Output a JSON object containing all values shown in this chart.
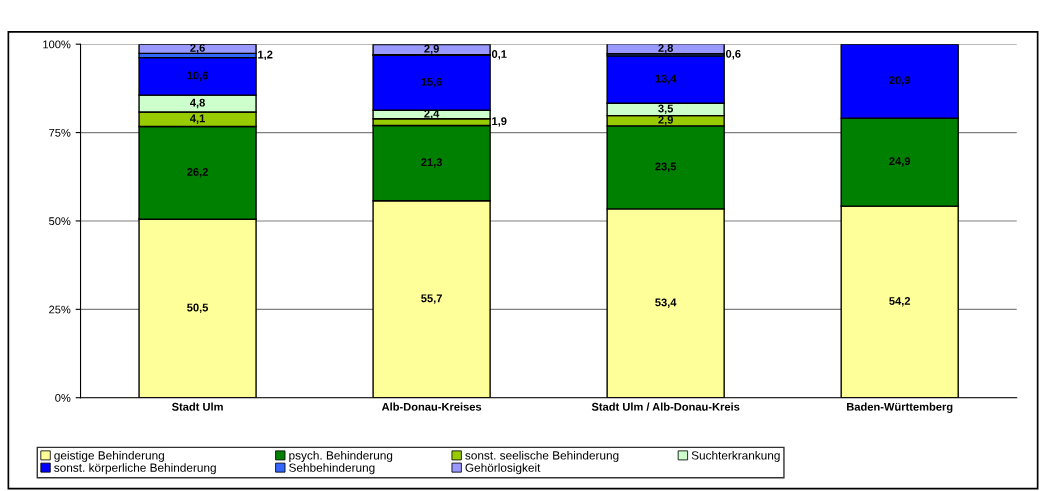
{
  "chart_data": {
    "type": "bar",
    "stacked": true,
    "categories": [
      "Stadt Ulm",
      "Alb-Donau-Kreises",
      "Stadt Ulm / Alb-Donau-Kreis",
      "Baden-Württemberg"
    ],
    "ylim": [
      0,
      100
    ],
    "yticks": [
      {
        "value": 0,
        "label": "0%"
      },
      {
        "value": 25,
        "label": "25%"
      },
      {
        "value": 50,
        "label": "50%"
      },
      {
        "value": 75,
        "label": "75%"
      },
      {
        "value": 100,
        "label": "100%"
      }
    ],
    "grid": "y",
    "legend": "bottom",
    "series": [
      {
        "name": "geistige Behinderung",
        "color": "#ffff99",
        "values": [
          50.5,
          55.7,
          53.4,
          54.2
        ],
        "value_labels": [
          "50,5",
          "55,7",
          "53,4",
          "54,2"
        ]
      },
      {
        "name": "psych. Behinderung",
        "color": "#008000",
        "values": [
          26.2,
          21.3,
          23.5,
          24.9
        ],
        "value_labels": [
          "26,2",
          "21,3",
          "23,5",
          "24,9"
        ]
      },
      {
        "name": "sonst. seelische Behinderung",
        "color": "#99cc00",
        "values": [
          4.1,
          1.9,
          2.9,
          null
        ],
        "value_labels": [
          "4,1",
          "1,9",
          "2,9",
          null
        ]
      },
      {
        "name": "Suchterkrankung",
        "color": "#ccffcc",
        "values": [
          4.8,
          2.4,
          3.5,
          null
        ],
        "value_labels": [
          "4,8",
          "2,4",
          "3,5",
          null
        ]
      },
      {
        "name": "sonst. körperliche Behinderung",
        "color": "#0000ff",
        "values": [
          10.6,
          15.6,
          13.4,
          20.9
        ],
        "value_labels": [
          "10,6",
          "15,6",
          "13,4",
          "20,9"
        ]
      },
      {
        "name": "Sehbehinderung",
        "color": "#3366ff",
        "values": [
          1.2,
          0.1,
          0.6,
          null
        ],
        "value_labels": [
          "1,2",
          "0,1",
          "0,6",
          null
        ]
      },
      {
        "name": "Gehörlosigkeit",
        "color": "#9999ff",
        "values": [
          2.6,
          2.9,
          2.8,
          null
        ],
        "value_labels": [
          "2,6",
          "2,9",
          "2,8",
          null
        ]
      }
    ]
  }
}
